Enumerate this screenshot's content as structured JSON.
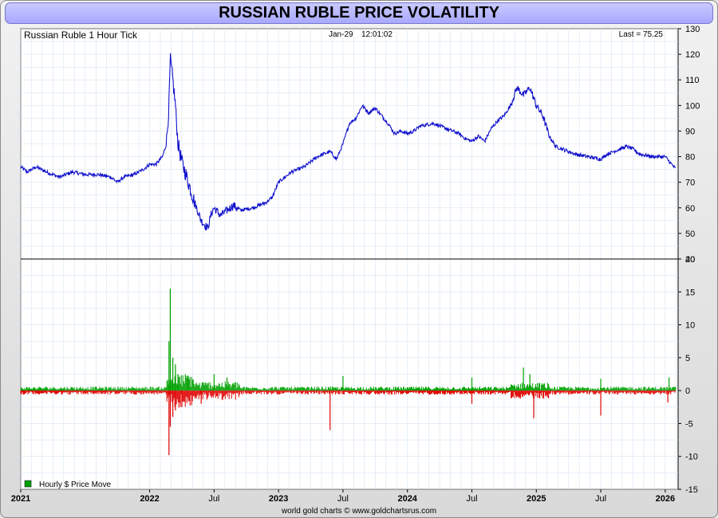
{
  "header": {
    "title": "RUSSIAN RUBLE PRICE VOLATILITY"
  },
  "footer": {
    "credit": "world gold charts © www.goldchartsrus.com"
  },
  "colors": {
    "price_line": "#1010cc",
    "gain_bars": "#00a000",
    "loss_bars": "#e00000",
    "grid": "#d6e4f2",
    "title_bg": "#b4b4ff"
  },
  "chart_data": [
    {
      "type": "line",
      "series_label": "Russian Ruble 1 Hour Tick",
      "stamp_date": "Jan-29",
      "stamp_time": "12:01:02",
      "last_label": "Last = 75.25",
      "ylim": [
        40,
        130
      ],
      "yticks": [
        40,
        50,
        60,
        70,
        80,
        90,
        100,
        110,
        120,
        130
      ],
      "xlim": [
        2021.0,
        2026.1
      ],
      "x_tick_labels": [
        {
          "x": 2021.0,
          "label": "2021",
          "bold": true
        },
        {
          "x": 2022.0,
          "label": "2022",
          "bold": true
        },
        {
          "x": 2022.5,
          "label": "Jul",
          "bold": false
        },
        {
          "x": 2023.0,
          "label": "2023",
          "bold": true
        },
        {
          "x": 2023.5,
          "label": "Jul",
          "bold": false
        },
        {
          "x": 2024.0,
          "label": "2024",
          "bold": true
        },
        {
          "x": 2024.5,
          "label": "Jul",
          "bold": false
        },
        {
          "x": 2025.0,
          "label": "2025",
          "bold": true
        },
        {
          "x": 2025.5,
          "label": "Jul",
          "bold": false
        },
        {
          "x": 2026.0,
          "label": "2026",
          "bold": true
        }
      ],
      "points": [
        [
          2021.0,
          76
        ],
        [
          2021.05,
          74
        ],
        [
          2021.12,
          76
        ],
        [
          2021.2,
          74
        ],
        [
          2021.3,
          72
        ],
        [
          2021.4,
          74
        ],
        [
          2021.5,
          73
        ],
        [
          2021.6,
          73
        ],
        [
          2021.7,
          72
        ],
        [
          2021.75,
          70
        ],
        [
          2021.8,
          72
        ],
        [
          2021.88,
          73
        ],
        [
          2021.95,
          75
        ],
        [
          2022.0,
          77
        ],
        [
          2022.05,
          77
        ],
        [
          2022.1,
          80
        ],
        [
          2022.13,
          85
        ],
        [
          2022.15,
          100
        ],
        [
          2022.16,
          118
        ],
        [
          2022.18,
          110
        ],
        [
          2022.2,
          100
        ],
        [
          2022.22,
          85
        ],
        [
          2022.25,
          78
        ],
        [
          2022.3,
          70
        ],
        [
          2022.35,
          62
        ],
        [
          2022.4,
          55
        ],
        [
          2022.45,
          52
        ],
        [
          2022.48,
          58
        ],
        [
          2022.5,
          60
        ],
        [
          2022.55,
          57
        ],
        [
          2022.6,
          59
        ],
        [
          2022.65,
          61
        ],
        [
          2022.7,
          59
        ],
        [
          2022.8,
          60
        ],
        [
          2022.9,
          62
        ],
        [
          2022.95,
          64
        ],
        [
          2023.0,
          70
        ],
        [
          2023.05,
          72
        ],
        [
          2023.1,
          74
        ],
        [
          2023.2,
          76
        ],
        [
          2023.3,
          80
        ],
        [
          2023.4,
          82
        ],
        [
          2023.45,
          79
        ],
        [
          2023.5,
          85
        ],
        [
          2023.55,
          93
        ],
        [
          2023.6,
          95
        ],
        [
          2023.65,
          100
        ],
        [
          2023.7,
          97
        ],
        [
          2023.75,
          99
        ],
        [
          2023.8,
          96
        ],
        [
          2023.85,
          93
        ],
        [
          2023.9,
          89
        ],
        [
          2023.95,
          90
        ],
        [
          2024.0,
          89
        ],
        [
          2024.05,
          90
        ],
        [
          2024.1,
          92
        ],
        [
          2024.2,
          93
        ],
        [
          2024.3,
          91
        ],
        [
          2024.4,
          89
        ],
        [
          2024.45,
          87
        ],
        [
          2024.5,
          86
        ],
        [
          2024.55,
          88
        ],
        [
          2024.6,
          86
        ],
        [
          2024.65,
          91
        ],
        [
          2024.7,
          94
        ],
        [
          2024.75,
          96
        ],
        [
          2024.8,
          100
        ],
        [
          2024.85,
          107
        ],
        [
          2024.9,
          104
        ],
        [
          2024.95,
          107
        ],
        [
          2025.0,
          100
        ],
        [
          2025.05,
          96
        ],
        [
          2025.1,
          88
        ],
        [
          2025.15,
          84
        ],
        [
          2025.2,
          83
        ],
        [
          2025.3,
          81
        ],
        [
          2025.4,
          80
        ],
        [
          2025.5,
          79
        ],
        [
          2025.55,
          81
        ],
        [
          2025.6,
          82
        ],
        [
          2025.7,
          84
        ],
        [
          2025.75,
          83
        ],
        [
          2025.8,
          81
        ],
        [
          2025.9,
          80
        ],
        [
          2026.0,
          80
        ],
        [
          2026.05,
          77
        ],
        [
          2026.08,
          75.25
        ]
      ]
    },
    {
      "type": "bar",
      "legend": [
        {
          "label": "Hourly $ Price Move",
          "color": "#00a000"
        }
      ],
      "ylim": [
        -15,
        20
      ],
      "yticks": [
        -15,
        -10,
        -5,
        0,
        5,
        10,
        15,
        20
      ],
      "xlim": [
        2021.0,
        2026.1
      ],
      "spikes": [
        [
          2022.16,
          15.5
        ],
        [
          2022.15,
          7.5
        ],
        [
          2022.18,
          5
        ],
        [
          2022.2,
          4
        ],
        [
          2022.22,
          2.5
        ],
        [
          2022.3,
          2.2
        ],
        [
          2022.5,
          2.5
        ],
        [
          2022.6,
          2.0
        ],
        [
          2023.5,
          2.2
        ],
        [
          2024.5,
          2.0
        ],
        [
          2024.9,
          3.5
        ],
        [
          2024.95,
          2.5
        ],
        [
          2025.5,
          1.8
        ],
        [
          2026.03,
          2.0
        ],
        [
          2022.15,
          -9.8
        ],
        [
          2022.16,
          -5.5
        ],
        [
          2022.18,
          -4
        ],
        [
          2022.2,
          -3
        ],
        [
          2022.25,
          -2.5
        ],
        [
          2022.4,
          -2
        ],
        [
          2023.4,
          -6
        ],
        [
          2024.5,
          -2
        ],
        [
          2024.98,
          -4.2
        ],
        [
          2025.5,
          -3.8
        ],
        [
          2026.02,
          -1.8
        ]
      ]
    }
  ]
}
